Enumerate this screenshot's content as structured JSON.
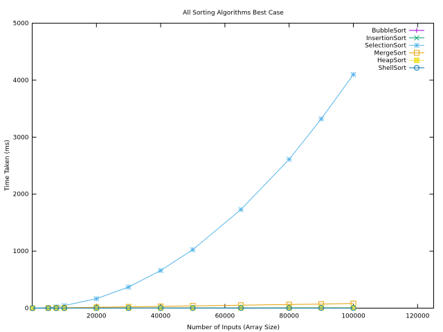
{
  "chart_data": {
    "type": "line",
    "title": "All Sorting Algorithms Best Case",
    "xlabel": "Number of Inputs (Array Size)",
    "ylabel": "Time Taken (ms)",
    "xlim": [
      0,
      125000
    ],
    "ylim": [
      0,
      5000
    ],
    "xticks": [
      20000,
      40000,
      60000,
      80000,
      100000,
      120000
    ],
    "yticks": [
      0,
      1000,
      2000,
      3000,
      4000,
      5000
    ],
    "grid": false,
    "legend_position": "top-right",
    "series": [
      {
        "name": "BubbleSort",
        "color": "#9400d3",
        "marker": "plus",
        "x": [
          100,
          5000,
          7500,
          10000,
          20000,
          30000,
          40000,
          50000,
          65000,
          80000,
          90000,
          100000
        ],
        "y": [
          0,
          0,
          0,
          1,
          1,
          1,
          1,
          1,
          1,
          1,
          1,
          1
        ]
      },
      {
        "name": "InsertionSort",
        "color": "#009e73",
        "marker": "cross",
        "x": [
          100,
          5000,
          7500,
          10000,
          20000,
          30000,
          40000,
          50000,
          65000,
          80000,
          90000,
          100000
        ],
        "y": [
          0,
          0,
          0,
          0,
          1,
          1,
          1,
          1,
          1,
          1,
          1,
          1
        ]
      },
      {
        "name": "SelectionSort",
        "color": "#56b4e9",
        "marker": "star",
        "x": [
          100,
          5000,
          7500,
          10000,
          20000,
          30000,
          40000,
          50000,
          65000,
          80000,
          90000,
          100000
        ],
        "y": [
          0,
          10,
          25,
          45,
          165,
          370,
          660,
          1025,
          1730,
          2610,
          3320,
          4100
        ]
      },
      {
        "name": "MergeSort",
        "color": "#e69f00",
        "marker": "open-square",
        "x": [
          100,
          5000,
          7500,
          10000,
          20000,
          30000,
          40000,
          50000,
          65000,
          80000,
          90000,
          100000
        ],
        "y": [
          0,
          3,
          5,
          7,
          15,
          23,
          30,
          40,
          52,
          63,
          72,
          82
        ]
      },
      {
        "name": "HeapSort",
        "color": "#f0e442",
        "marker": "filled-square",
        "x": [
          100,
          5000,
          7500,
          10000,
          20000,
          30000,
          40000,
          50000,
          65000,
          80000,
          90000,
          100000
        ],
        "y": [
          0,
          0,
          1,
          1,
          2,
          3,
          4,
          5,
          6,
          7,
          8,
          9
        ]
      },
      {
        "name": "ShellSort",
        "color": "#0072b2",
        "marker": "open-circle",
        "x": [
          100,
          5000,
          7500,
          10000,
          20000,
          30000,
          40000,
          50000,
          65000,
          80000,
          90000,
          100000
        ],
        "y": [
          0,
          0,
          0,
          1,
          1,
          1,
          2,
          2,
          3,
          3,
          4,
          4
        ]
      }
    ]
  }
}
